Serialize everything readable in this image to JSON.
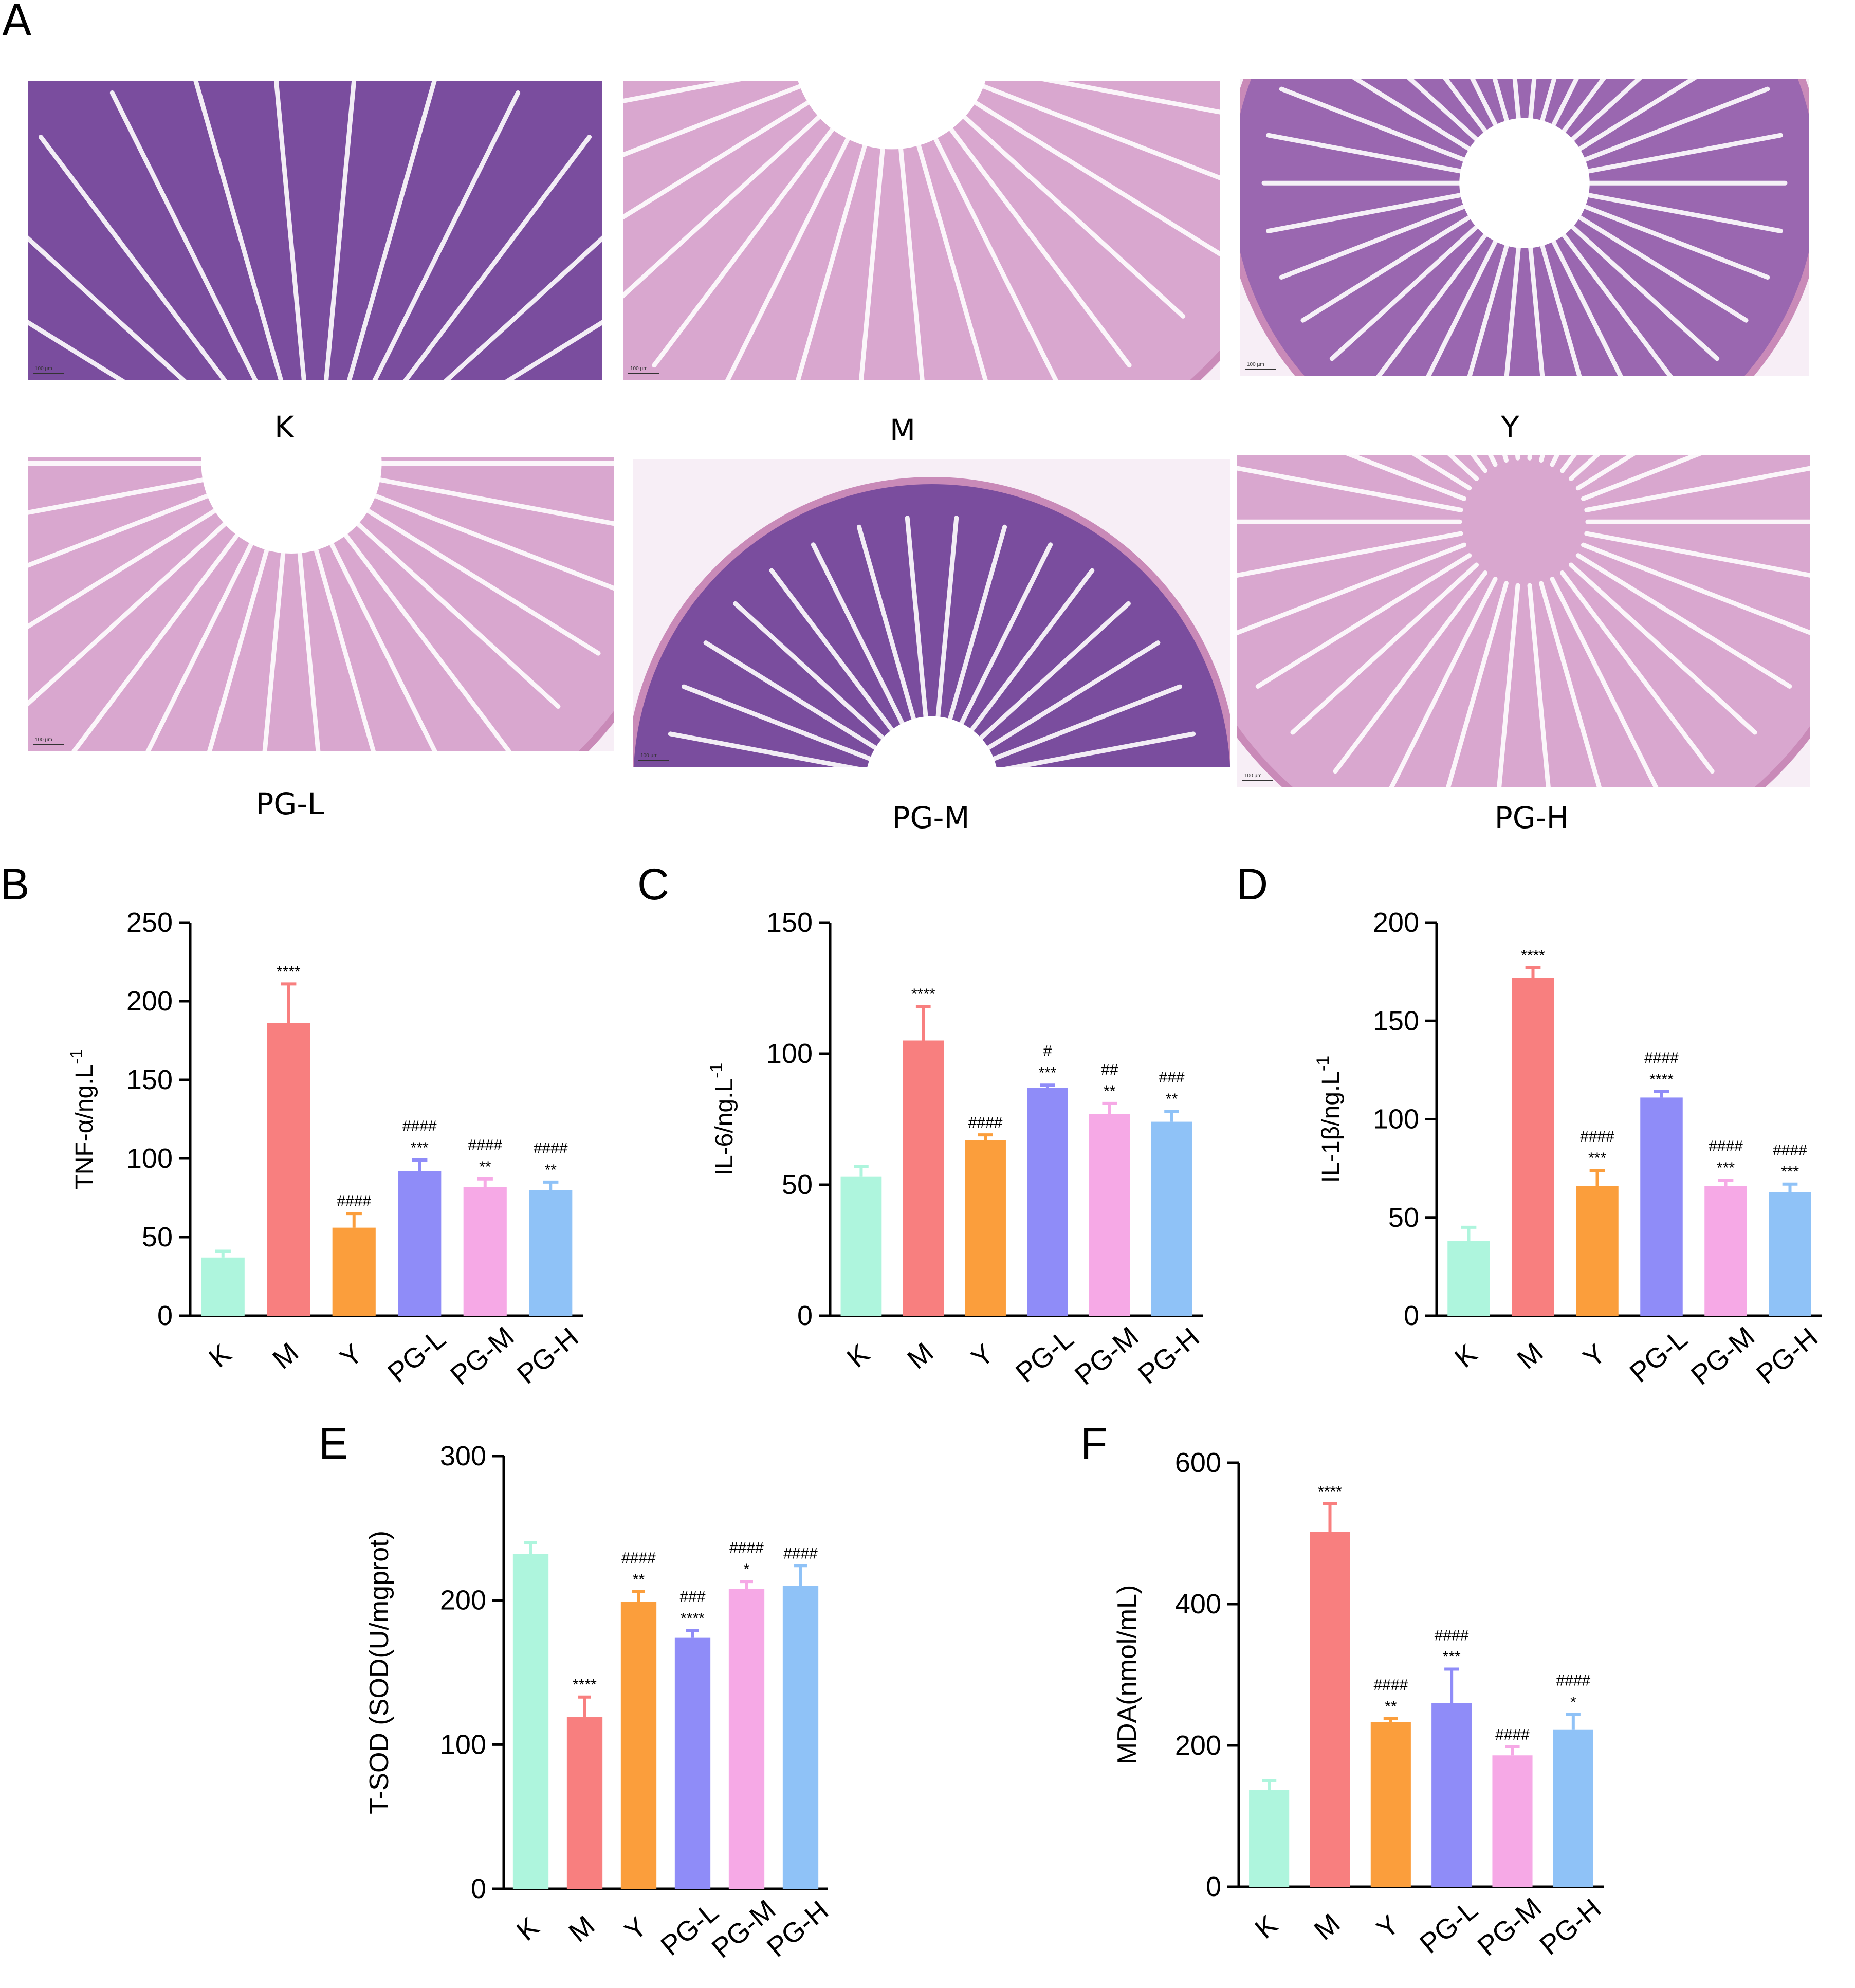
{
  "panel_a": {
    "letter": "A",
    "images": [
      {
        "label": "K",
        "stain": "dark",
        "scale_text": "100 µm"
      },
      {
        "label": "M",
        "stain": "light",
        "scale_text": "100 µm"
      },
      {
        "label": "Y",
        "stain": "medium",
        "scale_text": "100 µm"
      },
      {
        "label": "PG-L",
        "stain": "light",
        "scale_text": "100 µm"
      },
      {
        "label": "PG-M",
        "stain": "dark",
        "scale_text": "100 µm"
      },
      {
        "label": "PG-H",
        "stain": "light",
        "scale_text": "100 µm"
      }
    ],
    "stain_colors": {
      "dark": "#7a4d9e",
      "medium": "#9a67b0",
      "light": "#d9a7cf",
      "background": "#f7eef6"
    }
  },
  "colors": [
    "#aef5dd",
    "#f87f7f",
    "#fb9e3c",
    "#8f8cf8",
    "#f6a9e6",
    "#8fc2f7"
  ],
  "chart_data": [
    {
      "id": "B",
      "letter": "B",
      "type": "bar",
      "categories": [
        "K",
        "M",
        "Y",
        "PG-L",
        "PG-M",
        "PG-H"
      ],
      "values": [
        37,
        186,
        56,
        92,
        82,
        80
      ],
      "errors": [
        4,
        25,
        9,
        7,
        5,
        5
      ],
      "ylabel": "TNF-α/ng.L",
      "ylabel_sup": "-1",
      "ylim": [
        0,
        250
      ],
      "yticks": [
        0,
        50,
        100,
        150,
        200,
        250
      ],
      "annotations": [
        [
          "",
          ""
        ],
        [
          "****",
          ""
        ],
        [
          "####",
          ""
        ],
        [
          "***",
          "####"
        ],
        [
          "**",
          "####"
        ],
        [
          "**",
          "####"
        ]
      ]
    },
    {
      "id": "C",
      "letter": "C",
      "type": "bar",
      "categories": [
        "K",
        "M",
        "Y",
        "PG-L",
        "PG-M",
        "PG-H"
      ],
      "values": [
        53,
        105,
        67,
        87,
        77,
        74
      ],
      "errors": [
        4,
        13,
        2,
        1,
        4,
        4
      ],
      "ylabel": "IL-6/ng.L",
      "ylabel_sup": "-1",
      "ylim": [
        0,
        150
      ],
      "yticks": [
        0,
        50,
        100,
        150
      ],
      "annotations": [
        [
          "",
          ""
        ],
        [
          "****",
          ""
        ],
        [
          "####",
          ""
        ],
        [
          "***",
          "#"
        ],
        [
          "**",
          "##"
        ],
        [
          "**",
          "###"
        ]
      ]
    },
    {
      "id": "D",
      "letter": "D",
      "type": "bar",
      "categories": [
        "K",
        "M",
        "Y",
        "PG-L",
        "PG-M",
        "PG-H"
      ],
      "values": [
        38,
        172,
        66,
        111,
        66,
        63
      ],
      "errors": [
        7,
        5,
        8,
        3,
        3,
        4
      ],
      "ylabel": "IL-1β/ng.L",
      "ylabel_sup": "-1",
      "ylim": [
        0,
        200
      ],
      "yticks": [
        0,
        50,
        100,
        150,
        200
      ],
      "annotations": [
        [
          "",
          ""
        ],
        [
          "****",
          ""
        ],
        [
          "***",
          "####"
        ],
        [
          "****",
          "####"
        ],
        [
          "***",
          "####"
        ],
        [
          "***",
          "####"
        ]
      ]
    },
    {
      "id": "E",
      "letter": "E",
      "type": "bar",
      "categories": [
        "K",
        "M",
        "Y",
        "PG-L",
        "PG-M",
        "PG-H"
      ],
      "values": [
        232,
        119,
        199,
        174,
        208,
        210
      ],
      "errors": [
        8,
        14,
        7,
        5,
        5,
        14
      ],
      "ylabel": "T-SOD (SOD(U/mgprot)",
      "ylabel_sup": "",
      "ylim": [
        0,
        300
      ],
      "yticks": [
        0,
        100,
        200,
        300
      ],
      "annotations": [
        [
          "",
          ""
        ],
        [
          "****",
          ""
        ],
        [
          "**",
          "####"
        ],
        [
          "****",
          "###"
        ],
        [
          "*",
          "####"
        ],
        [
          "",
          "####"
        ]
      ]
    },
    {
      "id": "F",
      "letter": "F",
      "type": "bar",
      "categories": [
        "K",
        "M",
        "Y",
        "PG-L",
        "PG-M",
        "PG-H"
      ],
      "values": [
        137,
        502,
        233,
        260,
        186,
        222
      ],
      "errors": [
        13,
        40,
        5,
        48,
        12,
        22
      ],
      "ylabel": "MDA(nmol/mL)",
      "ylabel_sup": "",
      "ylim": [
        0,
        600
      ],
      "yticks": [
        0,
        200,
        400,
        600
      ],
      "annotations": [
        [
          "",
          ""
        ],
        [
          "****",
          ""
        ],
        [
          "**",
          "####"
        ],
        [
          "***",
          "####"
        ],
        [
          "",
          "####"
        ],
        [
          "*",
          "####"
        ]
      ]
    }
  ]
}
